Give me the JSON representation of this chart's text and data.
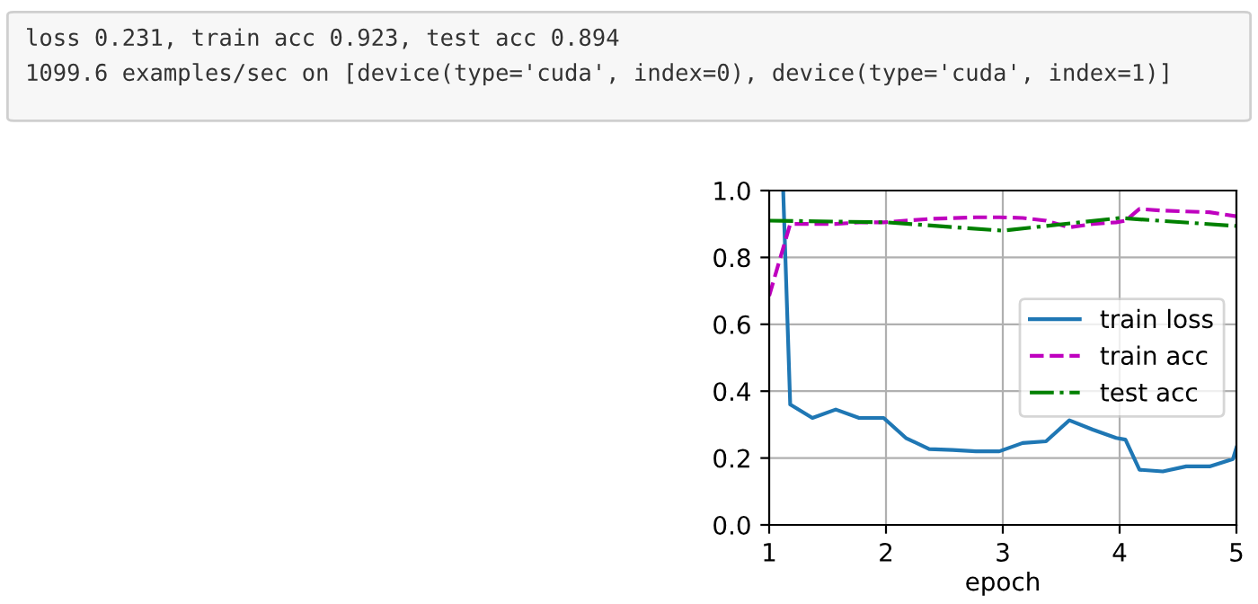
{
  "chart_data": {
    "type": "line",
    "annotations": [
      "loss 0.231, train acc 0.923, test acc 0.894",
      "1099.6 examples/sec on [device(type='cuda', index=0), device(type='cuda', index=1)]"
    ],
    "xlabel": "epoch",
    "series": [
      {
        "name": "train loss",
        "color": "#1f77b4",
        "line_style": "solid",
        "x": [
          1.12,
          1.18,
          1.37,
          1.57,
          1.77,
          1.98,
          2.17,
          2.37,
          2.57,
          2.77,
          2.97,
          3.17,
          3.37,
          3.57,
          3.77,
          3.97,
          4.05,
          4.17,
          4.37,
          4.57,
          4.77,
          4.97,
          5.0
        ],
        "values": [
          1.0,
          0.36,
          0.32,
          0.345,
          0.32,
          0.32,
          0.26,
          0.227,
          0.224,
          0.22,
          0.22,
          0.245,
          0.25,
          0.313,
          0.285,
          0.26,
          0.255,
          0.165,
          0.16,
          0.175,
          0.175,
          0.197,
          0.231
        ]
      },
      {
        "name": "train acc",
        "color": "#bf00bf",
        "line_style": "dashed",
        "x": [
          1.0,
          1.18,
          1.37,
          1.57,
          1.77,
          1.98,
          2.37,
          2.77,
          2.97,
          3.17,
          3.37,
          3.57,
          3.77,
          3.97,
          4.05,
          4.17,
          4.37,
          4.77,
          5.0
        ],
        "values": [
          0.685,
          0.9,
          0.9,
          0.9,
          0.905,
          0.905,
          0.915,
          0.92,
          0.92,
          0.918,
          0.91,
          0.89,
          0.9,
          0.905,
          0.91,
          0.945,
          0.94,
          0.935,
          0.923
        ]
      },
      {
        "name": "test acc",
        "color": "#008000",
        "line_style": "dashdot",
        "x": [
          1,
          2,
          3,
          4,
          5
        ],
        "values": [
          0.91,
          0.905,
          0.88,
          0.918,
          0.894
        ]
      }
    ],
    "xlim": [
      1,
      5
    ],
    "ylim": [
      0.0,
      1.0
    ],
    "xticks": [
      1,
      2,
      3,
      4,
      5
    ],
    "yticks": [
      {
        "value": 0.0,
        "label": "0.0"
      },
      {
        "value": 0.2,
        "label": "0.2"
      },
      {
        "value": 0.4,
        "label": "0.4"
      },
      {
        "value": 0.6,
        "label": "0.6"
      },
      {
        "value": 0.8,
        "label": "0.8"
      },
      {
        "value": 1.0,
        "label": "1.0"
      }
    ],
    "grid": true,
    "legend": "right"
  }
}
